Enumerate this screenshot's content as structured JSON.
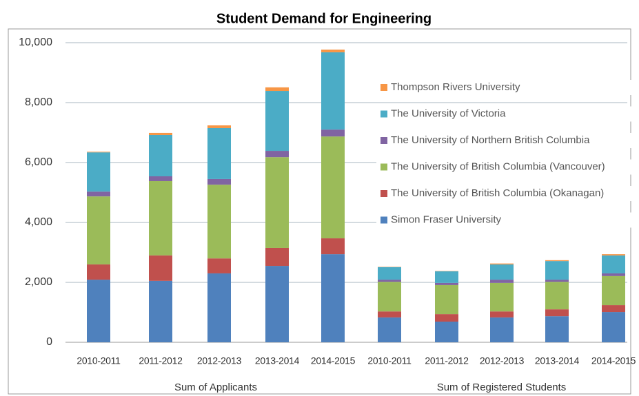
{
  "chart_data": {
    "type": "stacked_bar",
    "title": "Student Demand for Engineering",
    "groups": [
      {
        "name": "Sum of Applicants",
        "categories": [
          "2010-2011",
          "2011-2012",
          "2012-2013",
          "2013-2014",
          "2014-2015"
        ]
      },
      {
        "name": "Sum of Registered Students",
        "categories": [
          "2010-2011",
          "2011-2012",
          "2012-2013",
          "2013-2014",
          "2014-2015"
        ]
      }
    ],
    "series": [
      {
        "name": "Simon Fraser University",
        "color": "#4f81bd",
        "values": [
          2090,
          2050,
          2300,
          2550,
          2940,
          830,
          690,
          830,
          870,
          1010
        ]
      },
      {
        "name": "The University of British Columbia (Okanagan)",
        "color": "#c0504d",
        "values": [
          510,
          850,
          500,
          600,
          530,
          200,
          250,
          200,
          230,
          230
        ]
      },
      {
        "name": "The University of British Columbia (Vancouver)",
        "color": "#9bbb59",
        "values": [
          2270,
          2480,
          2460,
          3030,
          3400,
          990,
          970,
          950,
          920,
          970
        ]
      },
      {
        "name": "The University of Northern British Columbia",
        "color": "#8064a2",
        "values": [
          160,
          160,
          190,
          210,
          230,
          70,
          70,
          110,
          70,
          90
        ]
      },
      {
        "name": "The University of Victoria",
        "color": "#4bacc6",
        "values": [
          1310,
          1380,
          1700,
          2000,
          2580,
          420,
          390,
          510,
          620,
          600
        ]
      },
      {
        "name": "Thompson Rivers University",
        "color": "#f79646",
        "values": [
          20,
          70,
          90,
          120,
          90,
          10,
          10,
          30,
          30,
          40
        ]
      }
    ],
    "ylim": [
      0,
      10000
    ],
    "yticks": [
      0,
      {
        "value": 2000,
        "label": "2,000"
      },
      {
        "value": 4000,
        "label": "4,000"
      },
      {
        "value": 6000,
        "label": "6,000"
      },
      {
        "value": 8000,
        "label": "8,000"
      },
      {
        "value": 10000,
        "label": "10,000"
      }
    ],
    "grid": true
  }
}
